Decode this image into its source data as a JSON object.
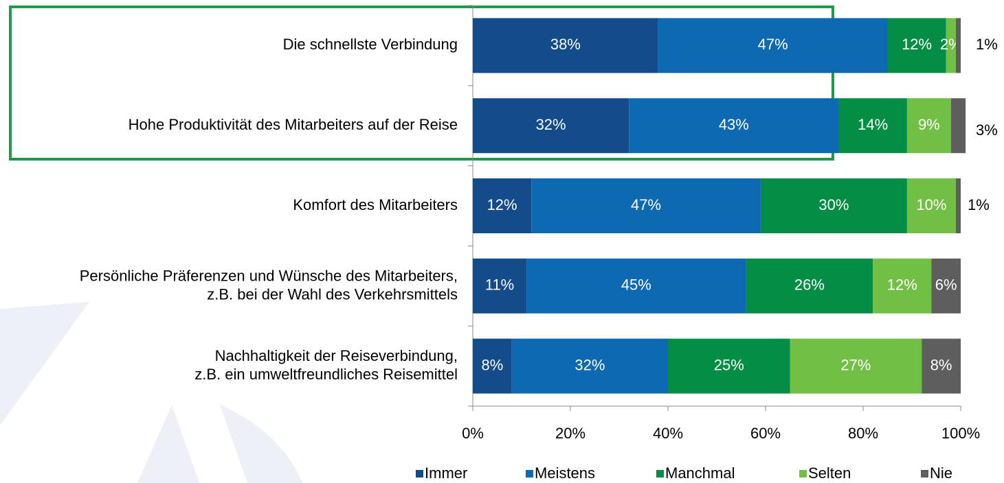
{
  "chart_data": {
    "type": "stacked-bar-horizontal",
    "categories": [
      "Die schnellste Verbindung",
      "Hohe Produktivität des Mitarbeiters auf der Reise",
      "Komfort des Mitarbeiters",
      "Persönliche Präferenzen und Wünsche des Mitarbeiters,\nz.B. bei der Wahl des Verkehrsmittels",
      "Nachhaltigkeit der Reiseverbindung,\nz.B. ein umweltfreundliches Reisemittel"
    ],
    "series": [
      {
        "name": "Immer",
        "color": "#134b8b",
        "values": [
          38,
          32,
          12,
          11,
          8
        ],
        "value_labels": [
          "38%",
          "32%",
          "12%",
          "11%",
          "8%"
        ]
      },
      {
        "name": "Meistens",
        "color": "#0e69b3",
        "values": [
          47,
          43,
          47,
          45,
          32
        ],
        "value_labels": [
          "47%",
          "43%",
          "47%",
          "45%",
          "32%"
        ]
      },
      {
        "name": "Manchmal",
        "color": "#038d45",
        "values": [
          12,
          14,
          30,
          26,
          25
        ],
        "value_labels": [
          "12%",
          "14%",
          "30%",
          "26%",
          "25%"
        ]
      },
      {
        "name": "Selten",
        "color": "#72bf45",
        "values": [
          2,
          9,
          10,
          12,
          27
        ],
        "value_labels": [
          "2%",
          "9%",
          "10%",
          "12%",
          "27%"
        ]
      },
      {
        "name": "Nie",
        "color": "#5e5e5e",
        "values": [
          1,
          3,
          1,
          6,
          8
        ],
        "value_labels": [
          "1%",
          "3%",
          "1%",
          "6%",
          "8%"
        ]
      }
    ],
    "xlim": [
      0,
      100
    ],
    "xticks": [
      {
        "value": 0,
        "label": "0%"
      },
      {
        "value": 20,
        "label": "20%"
      },
      {
        "value": 40,
        "label": "40%"
      },
      {
        "value": 60,
        "label": "60%"
      },
      {
        "value": 80,
        "label": "80%"
      },
      {
        "value": 100,
        "label": "100%"
      }
    ],
    "legend": "bottom"
  }
}
